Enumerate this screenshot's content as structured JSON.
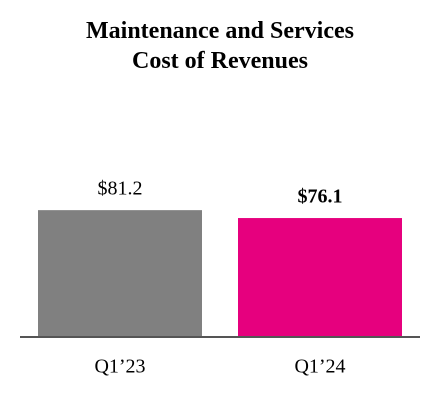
{
  "chart_data": {
    "type": "bar",
    "title": "Maintenance and Services Cost of Revenues",
    "categories": [
      "Q1’23",
      "Q1’24"
    ],
    "values": [
      81.2,
      76.1
    ],
    "value_labels": [
      "$81.2",
      "$76.1"
    ],
    "value_label_bold": [
      false,
      true
    ],
    "colors": [
      "#808080",
      "#e6007e"
    ],
    "ylim": [
      0,
      100
    ]
  }
}
